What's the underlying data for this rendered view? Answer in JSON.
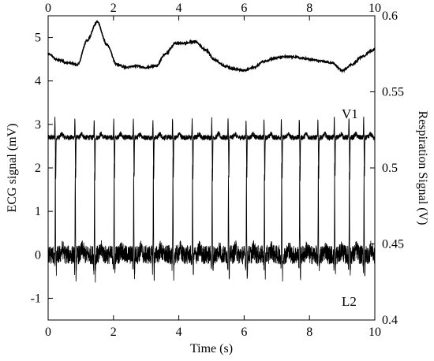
{
  "chart_data": {
    "type": "line",
    "title": "",
    "xlabel": "Time (s)",
    "ylabel_left": "ECG signal (mV)",
    "ylabel_right": "Respiration Signal (V)",
    "xlim": [
      0,
      10
    ],
    "ylim_left": [
      -1.5,
      5.5
    ],
    "ylim_right": [
      0.4,
      0.6
    ],
    "x_ticks": [
      "0",
      "2",
      "4",
      "6",
      "8",
      "10"
    ],
    "y_ticks_left": [
      "-1",
      "0",
      "1",
      "2",
      "3",
      "4",
      "5"
    ],
    "y_ticks_right": [
      "0.4",
      "0.45",
      "0.5",
      "0.55",
      "0.6"
    ],
    "grid": false,
    "line_color": "#000000",
    "series": [
      {
        "name": "V1",
        "axis": "left",
        "baseline": 2.7,
        "beats": [
          0.22,
          0.83,
          1.42,
          2.02,
          2.62,
          3.22,
          3.82,
          4.42,
          5.02,
          5.52,
          6.07,
          6.62,
          7.15,
          7.7,
          8.27,
          8.77,
          9.22,
          9.67
        ]
      },
      {
        "name": "L2",
        "axis": "left",
        "baseline": 0.0,
        "beats": [
          0.22,
          0.83,
          1.42,
          2.02,
          2.62,
          3.22,
          3.82,
          4.42,
          5.02,
          5.52,
          6.07,
          6.62,
          7.15,
          7.7,
          8.27,
          8.77,
          9.22,
          9.67
        ]
      },
      {
        "name": "Respiration",
        "axis": "right",
        "x": [
          0,
          0.3,
          0.6,
          0.9,
          1.2,
          1.5,
          1.8,
          2.1,
          2.4,
          2.7,
          3.0,
          3.3,
          3.6,
          3.9,
          4.2,
          4.5,
          4.8,
          5.1,
          5.4,
          5.7,
          6.0,
          6.3,
          6.6,
          6.9,
          7.2,
          7.5,
          7.8,
          8.1,
          8.4,
          8.7,
          9.0,
          9.3,
          9.6,
          9.9,
          10.0
        ],
        "values": [
          0.575,
          0.571,
          0.569,
          0.568,
          0.584,
          0.596,
          0.581,
          0.568,
          0.566,
          0.567,
          0.566,
          0.567,
          0.575,
          0.582,
          0.582,
          0.583,
          0.578,
          0.571,
          0.567,
          0.565,
          0.564,
          0.566,
          0.57,
          0.572,
          0.573,
          0.573,
          0.572,
          0.571,
          0.57,
          0.569,
          0.564,
          0.568,
          0.573,
          0.577,
          0.578
        ]
      }
    ]
  }
}
